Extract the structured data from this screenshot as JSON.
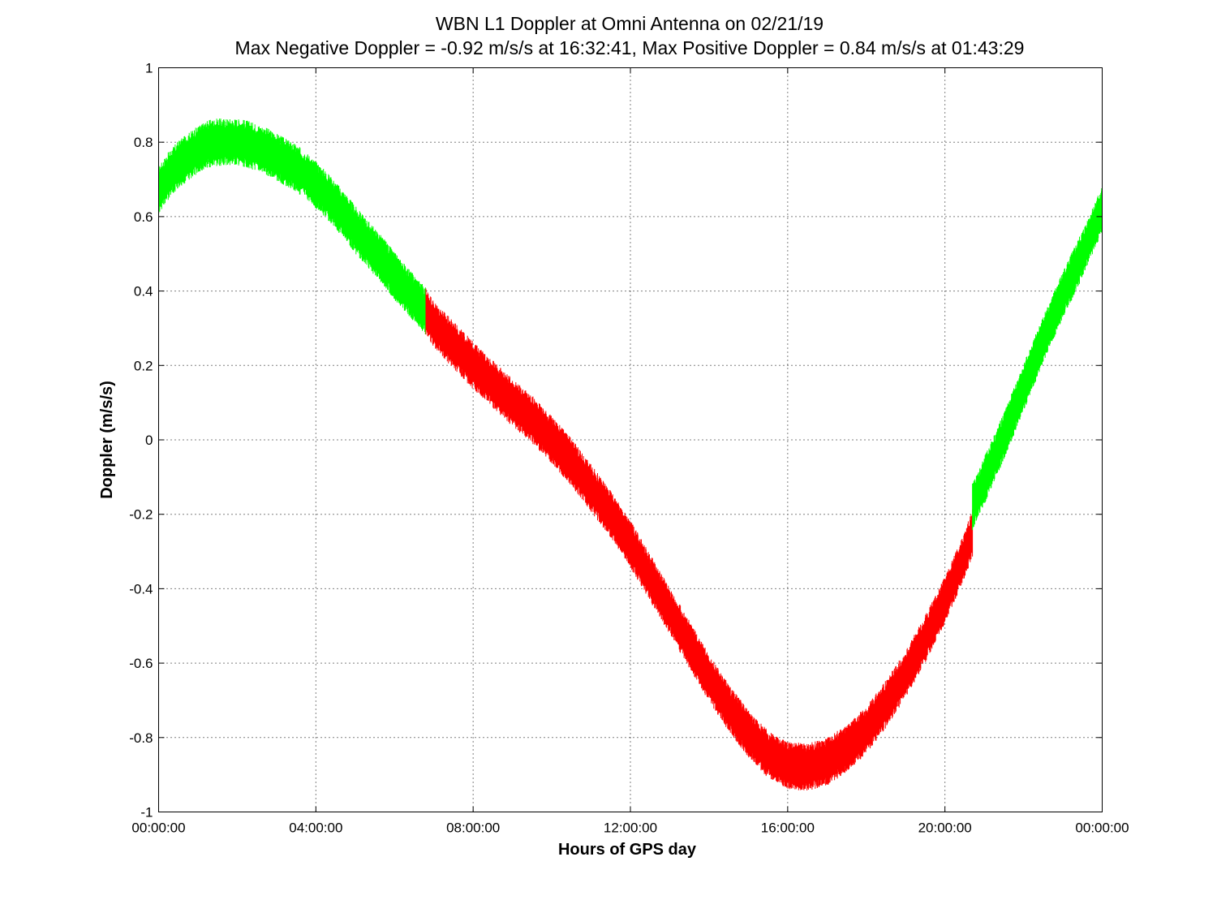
{
  "chart_data": {
    "type": "scatter",
    "title": "WBN  L1 Doppler at Omni Antenna on 02/21/19",
    "subtitle": "Max Negative Doppler = -0.92 m/s/s  at 16:32:41,   Max Positive Doppler = 0.84 m/s/s  at 01:43:29",
    "xlabel": "Hours of GPS day",
    "ylabel": "Doppler (m/s/s)",
    "xlim": [
      0,
      24
    ],
    "ylim": [
      -1,
      1
    ],
    "x_ticks": [
      {
        "value": 0,
        "label": "00:00:00"
      },
      {
        "value": 4,
        "label": "04:00:00"
      },
      {
        "value": 8,
        "label": "08:00:00"
      },
      {
        "value": 12,
        "label": "12:00:00"
      },
      {
        "value": 16,
        "label": "16:00:00"
      },
      {
        "value": 20,
        "label": "20:00:00"
      },
      {
        "value": 24,
        "label": "00:00:00"
      }
    ],
    "y_ticks": [
      {
        "value": 1,
        "label": "1"
      },
      {
        "value": 0.8,
        "label": "0.8"
      },
      {
        "value": 0.6,
        "label": "0.6"
      },
      {
        "value": 0.4,
        "label": "0.4"
      },
      {
        "value": 0.2,
        "label": "0.2"
      },
      {
        "value": 0,
        "label": "0"
      },
      {
        "value": -0.2,
        "label": "-0.2"
      },
      {
        "value": -0.4,
        "label": "-0.4"
      },
      {
        "value": -0.6,
        "label": "-0.6"
      },
      {
        "value": -0.8,
        "label": "-0.8"
      },
      {
        "value": -1,
        "label": "-1"
      }
    ],
    "grid": true,
    "legend": "none",
    "band_halfwidth": 0.04,
    "series": [
      {
        "color": "#00ff00",
        "x": [
          0,
          0.25,
          0.5,
          0.75,
          1,
          1.25,
          1.5,
          1.72,
          2,
          2.25,
          2.5,
          2.75,
          3,
          3.25,
          3.5,
          3.75,
          4,
          4.25,
          4.5,
          4.75,
          5,
          5.25,
          5.5,
          5.75,
          6,
          6.25,
          6.5,
          6.8
        ],
        "y": [
          0.67,
          0.71,
          0.74,
          0.76,
          0.78,
          0.795,
          0.8,
          0.8,
          0.8,
          0.795,
          0.785,
          0.775,
          0.76,
          0.745,
          0.73,
          0.71,
          0.685,
          0.66,
          0.63,
          0.6,
          0.565,
          0.535,
          0.505,
          0.475,
          0.44,
          0.41,
          0.38,
          0.345
        ]
      },
      {
        "color": "#ff0000",
        "x": [
          6.8,
          7,
          7.5,
          8,
          8.5,
          9,
          9.5,
          10,
          10.5,
          11,
          11.5,
          12,
          12.5,
          13,
          13.5,
          14,
          14.5,
          15,
          15.5,
          16,
          16.5,
          17,
          17.5,
          18,
          18.5,
          19,
          19.5,
          20,
          20.5,
          20.7
        ],
        "y": [
          0.345,
          0.31,
          0.255,
          0.2,
          0.15,
          0.1,
          0.055,
          0.0,
          -0.06,
          -0.13,
          -0.2,
          -0.28,
          -0.37,
          -0.46,
          -0.55,
          -0.64,
          -0.72,
          -0.79,
          -0.845,
          -0.875,
          -0.88,
          -0.865,
          -0.83,
          -0.78,
          -0.71,
          -0.63,
          -0.535,
          -0.43,
          -0.31,
          -0.25
        ]
      },
      {
        "color": "#00ff00",
        "x": [
          20.7,
          21,
          21.5,
          22,
          22.5,
          23,
          23.5,
          24
        ],
        "y": [
          -0.18,
          -0.11,
          0.01,
          0.14,
          0.27,
          0.39,
          0.5,
          0.62
        ]
      }
    ]
  }
}
